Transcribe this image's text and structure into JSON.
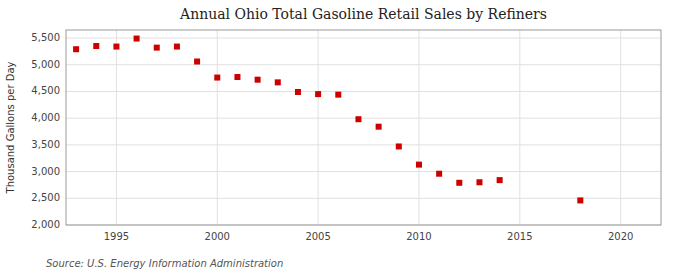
{
  "chart_data": {
    "type": "scatter",
    "title": "Annual Ohio Total Gasoline Retail Sales by Refiners",
    "y_label": "Thousand Gallons per Day",
    "source": "Source: U.S. Energy Information Administration",
    "x": [
      1993,
      1994,
      1995,
      1996,
      1997,
      1998,
      1999,
      2000,
      2001,
      2002,
      2003,
      2004,
      2005,
      2006,
      2007,
      2008,
      2009,
      2010,
      2011,
      2012,
      2013,
      2014,
      2018
    ],
    "values": [
      5290,
      5350,
      5340,
      5490,
      5320,
      5340,
      5060,
      4760,
      4770,
      4720,
      4670,
      4490,
      4450,
      4440,
      3980,
      3840,
      3470,
      3130,
      2960,
      2790,
      2800,
      2840,
      2460
    ],
    "color": "#CC0000",
    "marker": "square",
    "xlim": [
      1992.5,
      2022
    ],
    "ylim": [
      2000,
      5650
    ],
    "xticks": [
      1995,
      2000,
      2005,
      2010,
      2015,
      2020
    ],
    "yticks": [
      {
        "value": 2000,
        "label": "2,000"
      },
      {
        "value": 2500,
        "label": "2,500"
      },
      {
        "value": 3000,
        "label": "3,000"
      },
      {
        "value": 3500,
        "label": "3,500"
      },
      {
        "value": 4000,
        "label": "4,000"
      },
      {
        "value": 4500,
        "label": "4,500"
      },
      {
        "value": 5000,
        "label": "5,000"
      },
      {
        "value": 5500,
        "label": "5,500"
      }
    ],
    "grid": true
  }
}
